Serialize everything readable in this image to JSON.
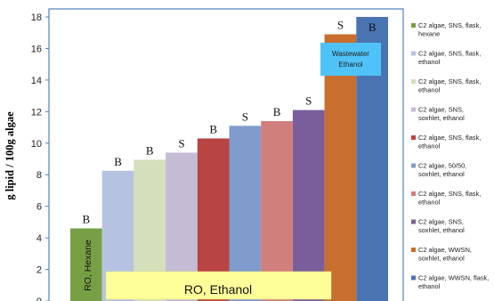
{
  "chart_data": {
    "type": "bar",
    "title": "",
    "xlabel": "",
    "ylabel": "g lipid / 100g algae",
    "ylim": [
      0,
      18
    ],
    "yticks": [
      0,
      2,
      4,
      6,
      8,
      10,
      12,
      14,
      16,
      18
    ],
    "grid": false,
    "legend_position": "right",
    "series": [
      {
        "name": "C2 algae, SNS, flask, hexane",
        "value": 4.6,
        "label": "B",
        "color": "#77a046"
      },
      {
        "name": "C2 algae, SNS, flask, ethanol",
        "value": 8.25,
        "label": "B",
        "color": "#b5c2e0"
      },
      {
        "name": "C2 algae, SNS, flask, ethanol",
        "value": 8.95,
        "label": "B",
        "color": "#d4dfbc"
      },
      {
        "name": "C2 algae, SNS, soxhlet, ethanol",
        "value": 9.4,
        "label": "S",
        "color": "#c4bbd4"
      },
      {
        "name": "C2 algae, SNS, flask, ethanol",
        "value": 10.3,
        "label": "B",
        "color": "#b84444"
      },
      {
        "name": "C2 algae, 50/50, soxhlet, ethanol",
        "value": 11.1,
        "label": "S",
        "color": "#7f9ccc"
      },
      {
        "name": "C2 algae, SNS, flask, ethanol",
        "value": 11.4,
        "label": "B",
        "color": "#d07f7d"
      },
      {
        "name": "C2 algae, SNS, soxhlet, ethanol",
        "value": 12.1,
        "label": "S",
        "color": "#7a5e9c"
      },
      {
        "name": "C2 algae, WWSN, soxhlet, ethanol",
        "value": 16.9,
        "label": "S",
        "color": "#c86e2e"
      },
      {
        "name": "C2 algae, WWSN, flask, ethanol",
        "value": 18.0,
        "label": "B",
        "color": "#4a73b2"
      }
    ],
    "annotations": {
      "ro_hexane": "RO, Hexane",
      "ro_ethanol": "RO, Ethanol",
      "wastewater_line1": "Wastewater",
      "wastewater_line2": "Ethanol"
    },
    "colors": {
      "axis": "#4f81bd",
      "ro_ethanol_box": "#ffff99",
      "wastewater_box": "#4fc3f7"
    }
  }
}
